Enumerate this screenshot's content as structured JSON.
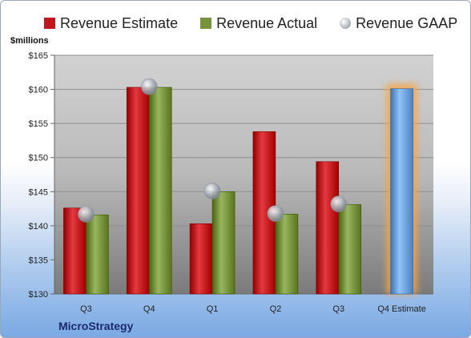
{
  "chart_data": {
    "type": "bar",
    "title": "",
    "company": "MicroStrategy",
    "ylabel": "$millions",
    "ylim": [
      130,
      165
    ],
    "yticks": [
      130,
      135,
      140,
      145,
      150,
      155,
      160,
      165
    ],
    "ytick_labels": [
      "$130",
      "$135",
      "$140",
      "$145",
      "$150",
      "$155",
      "$160",
      "$165"
    ],
    "categories": [
      "Q3",
      "Q4",
      "Q1",
      "Q2",
      "Q3",
      "Q4 Estimate"
    ],
    "legend_position": "top",
    "grid": true,
    "series": [
      {
        "name": "Revenue Estimate",
        "kind": "bar",
        "color": "#c0161c",
        "values": [
          142.6,
          160.3,
          140.3,
          153.8,
          149.4,
          null
        ]
      },
      {
        "name": "Revenue Actual",
        "kind": "bar",
        "color": "#76923c",
        "values": [
          141.6,
          160.3,
          145.0,
          141.7,
          143.1,
          null
        ]
      },
      {
        "name": "Revenue GAAP",
        "kind": "marker",
        "color": "#b7bcc4",
        "values": [
          141.7,
          160.4,
          145.1,
          141.8,
          143.2,
          null
        ]
      },
      {
        "name": "",
        "kind": "forecast-bar",
        "color": "#6d9fd8",
        "values": [
          null,
          null,
          null,
          null,
          null,
          160.1
        ]
      }
    ]
  }
}
